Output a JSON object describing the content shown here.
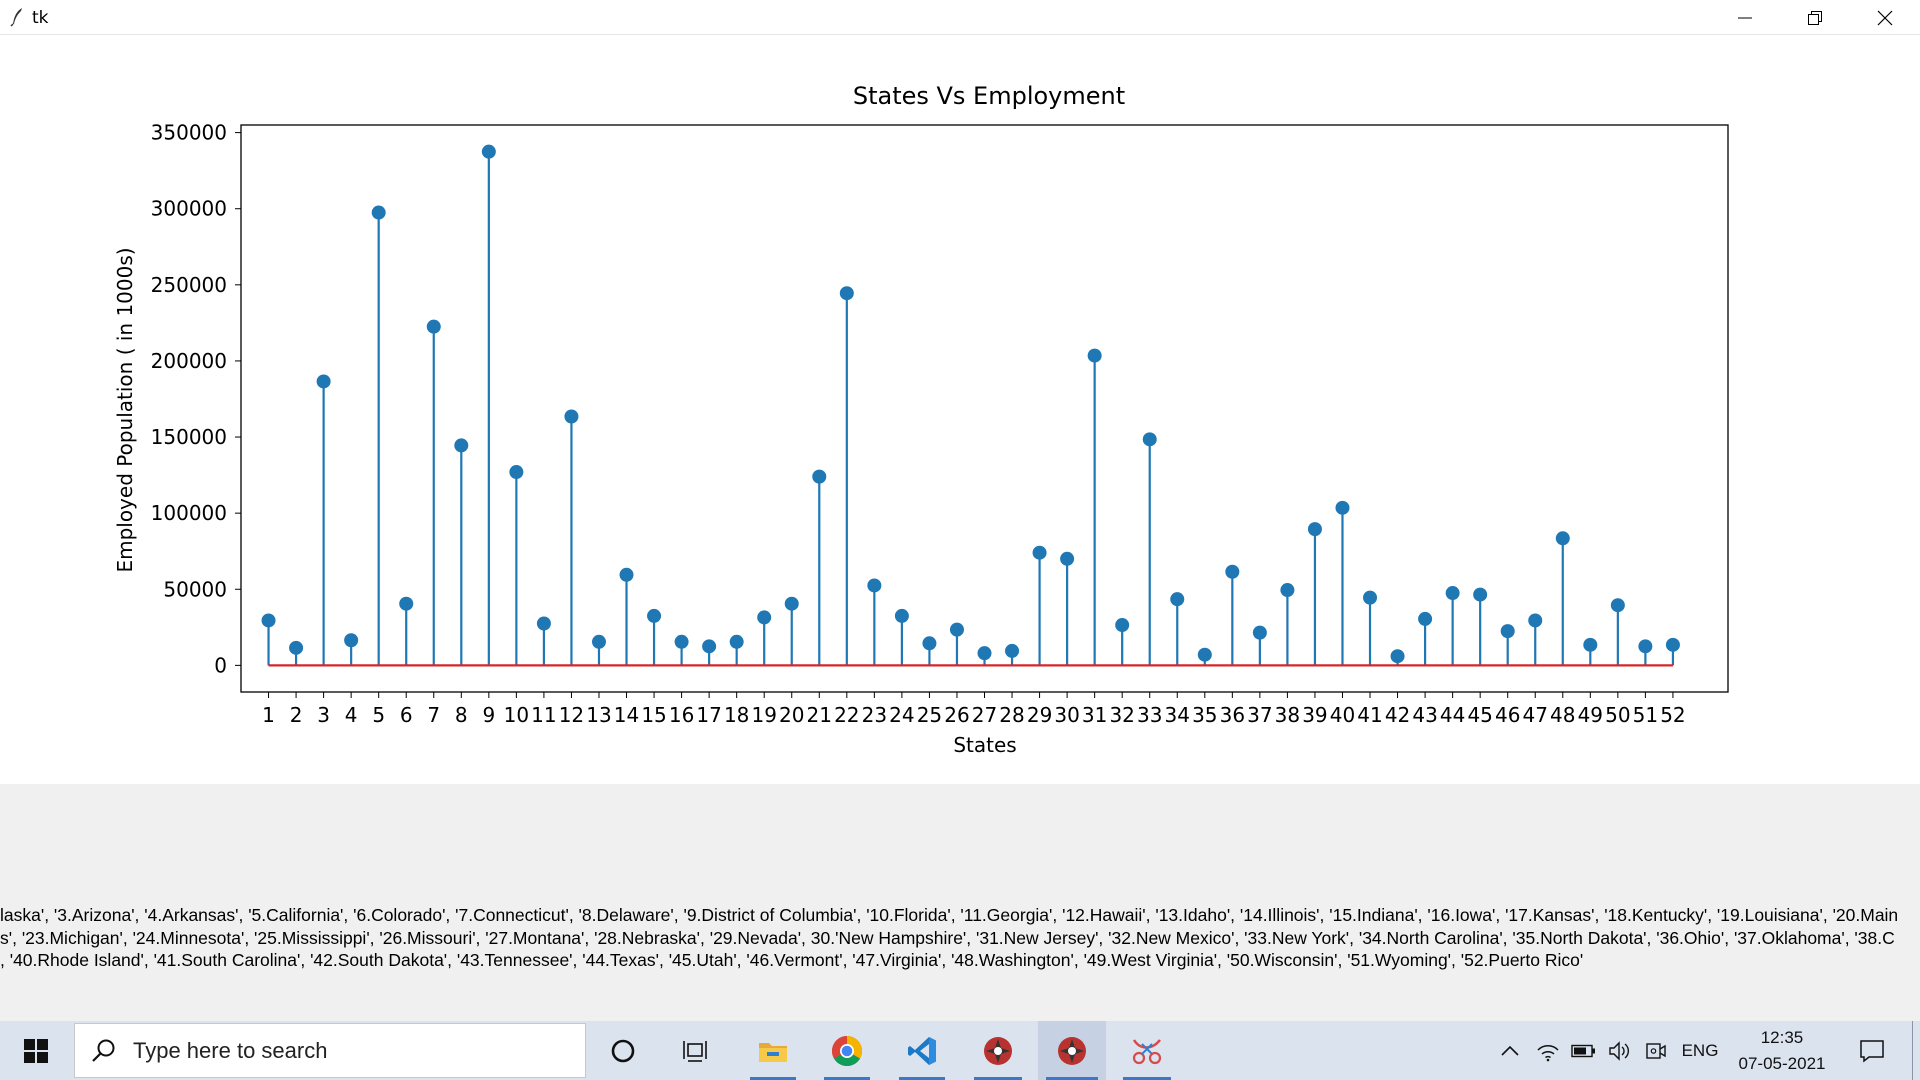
{
  "window": {
    "title": "tk",
    "minimize_label": "Minimize",
    "maximize_label": "Restore",
    "close_label": "Close"
  },
  "chart_data": {
    "type": "stem",
    "title": "States Vs Employment",
    "xlabel": "States",
    "ylabel": "Employed Population ( in 1000s)",
    "x": [
      1,
      2,
      3,
      4,
      5,
      6,
      7,
      8,
      9,
      10,
      11,
      12,
      13,
      14,
      15,
      16,
      17,
      18,
      19,
      20,
      21,
      22,
      23,
      24,
      25,
      26,
      27,
      28,
      29,
      30,
      31,
      32,
      33,
      34,
      35,
      36,
      37,
      38,
      39,
      40,
      41,
      42,
      43,
      44,
      45,
      46,
      47,
      48,
      49,
      50,
      51,
      52
    ],
    "values": [
      29500,
      11500,
      186500,
      16500,
      297500,
      40500,
      222500,
      144500,
      337500,
      127000,
      27500,
      163500,
      15500,
      59500,
      32500,
      15500,
      12500,
      15500,
      31500,
      40500,
      124000,
      244500,
      52500,
      32500,
      14500,
      23500,
      8000,
      9500,
      74000,
      70000,
      203500,
      26500,
      148500,
      43500,
      7000,
      61500,
      21500,
      49500,
      89500,
      103500,
      44500,
      6000,
      30500,
      47500,
      46500,
      22500,
      29500,
      83500,
      13500,
      39500,
      12500,
      13500
    ],
    "yticks": [
      "0",
      "50000",
      "100000",
      "150000",
      "200000",
      "250000",
      "300000",
      "350000"
    ],
    "ytick_values": [
      0,
      50000,
      100000,
      150000,
      200000,
      250000,
      300000,
      350000
    ],
    "ylim": [
      -17500,
      355000
    ],
    "xlim": [
      0,
      54
    ],
    "colors": {
      "stem": "#1f77b4",
      "baseline": "#d62728",
      "axes": "#000000"
    },
    "grid": false,
    "legend": "none"
  },
  "state_labels": [
    "laska', '3.Arizona', '4.Arkansas', '5.California', '6.Colorado', '7.Connecticut', '8.Delaware', '9.District of Columbia', '10.Florida', '11.Georgia', '12.Hawaii', '13.Idaho', '14.Illinois', '15.Indiana', '16.Iowa', '17.Kansas', '18.Kentucky', '19.Louisiana', '20.Main",
    "s', '23.Michigan', '24.Minnesota', '25.Mississippi', '26.Missouri', '27.Montana', '28.Nebraska', '29.Nevada', 30.'New Hampshire', '31.New Jersey', '32.New Mexico', '33.New York', '34.North Carolina', '35.North Dakota', '36.Ohio', '37.Oklahoma', '38.C",
    ", '40.Rhode Island', '41.South Carolina', '42.South Dakota', '43.Tennessee', '44.Texas', '45.Utah', '46.Vermont', '47.Virginia', '48.Washington', '49.West Virginia', '50.Wisconsin', '51.Wyoming', '52.Puerto Rico'"
  ],
  "taskbar": {
    "search_placeholder": "Type here to search",
    "language": "ENG",
    "time": "12:35",
    "date": "07-05-2021",
    "apps": [
      {
        "icon": "cortana-circle-icon"
      },
      {
        "icon": "task-view-icon"
      },
      {
        "icon": "file-explorer-icon"
      },
      {
        "icon": "chrome-icon"
      },
      {
        "icon": "vscode-icon"
      },
      {
        "icon": "python-app-icon"
      },
      {
        "icon": "python-app-icon"
      },
      {
        "icon": "snipping-tool-icon"
      }
    ]
  }
}
